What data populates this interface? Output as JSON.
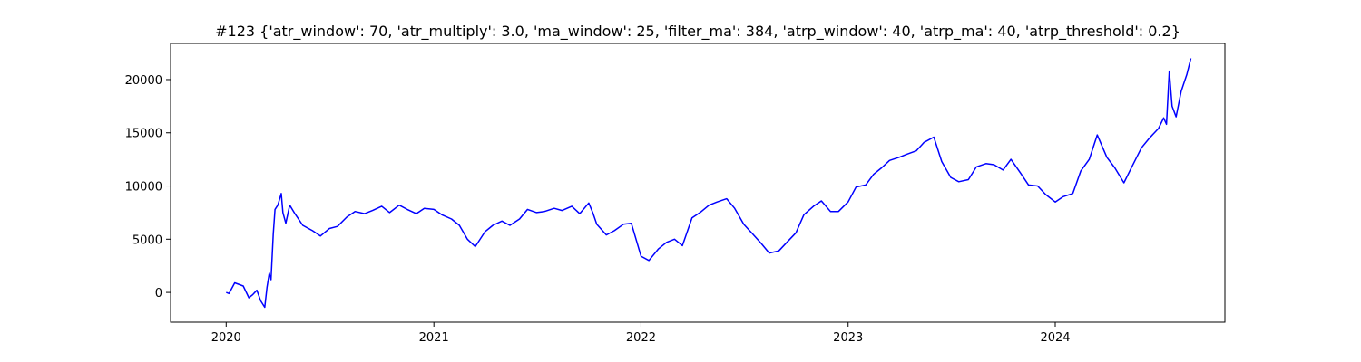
{
  "chart_data": {
    "type": "line",
    "title": "#123 {'atr_window': 70, 'atr_multiply': 3.0, 'ma_window': 25, 'filter_ma': 384, 'atrp_window': 40, 'atrp_ma': 40, 'atrp_threshold': 0.2}",
    "xlabel": "",
    "ylabel": "",
    "grid": false,
    "legend": "none",
    "line_color": "#0000ff",
    "xlim": [
      "2019-09-25",
      "2024-10-26"
    ],
    "ylim": [
      -2800,
      23400
    ],
    "x_ticks": [
      {
        "value": "2020-01-01",
        "label": "2020"
      },
      {
        "value": "2021-01-01",
        "label": "2021"
      },
      {
        "value": "2022-01-01",
        "label": "2022"
      },
      {
        "value": "2023-01-01",
        "label": "2023"
      },
      {
        "value": "2024-01-01",
        "label": "2024"
      }
    ],
    "y_ticks": [
      {
        "value": 0,
        "label": "0"
      },
      {
        "value": 5000,
        "label": "5000"
      },
      {
        "value": 10000,
        "label": "10000"
      },
      {
        "value": 15000,
        "label": "15000"
      },
      {
        "value": 20000,
        "label": "20000"
      }
    ],
    "series": [
      {
        "x": [
          "2020-01-01",
          "2020-01-06",
          "2020-01-16",
          "2020-01-31",
          "2020-02-10",
          "2020-02-17",
          "2020-02-24",
          "2020-03-02",
          "2020-03-09",
          "2020-03-13",
          "2020-03-17",
          "2020-03-20",
          "2020-03-24",
          "2020-03-27",
          "2020-04-01",
          "2020-04-07",
          "2020-04-10",
          "2020-04-15",
          "2020-04-22",
          "2020-05-01",
          "2020-05-15",
          "2020-06-01",
          "2020-06-15",
          "2020-07-01",
          "2020-07-15",
          "2020-08-01",
          "2020-08-15",
          "2020-09-01",
          "2020-09-15",
          "2020-10-01",
          "2020-10-15",
          "2020-11-01",
          "2020-11-15",
          "2020-12-01",
          "2020-12-15",
          "2021-01-01",
          "2021-01-15",
          "2021-02-01",
          "2021-02-15",
          "2021-03-01",
          "2021-03-15",
          "2021-04-01",
          "2021-04-15",
          "2021-05-01",
          "2021-05-15",
          "2021-06-01",
          "2021-06-15",
          "2021-07-01",
          "2021-07-15",
          "2021-08-01",
          "2021-08-15",
          "2021-09-01",
          "2021-09-15",
          "2021-10-01",
          "2021-10-08",
          "2021-10-15",
          "2021-11-01",
          "2021-11-15",
          "2021-12-01",
          "2021-12-15",
          "2022-01-01",
          "2022-01-15",
          "2022-02-01",
          "2022-02-15",
          "2022-03-01",
          "2022-03-15",
          "2022-04-01",
          "2022-04-15",
          "2022-05-01",
          "2022-05-15",
          "2022-06-01",
          "2022-06-15",
          "2022-07-01",
          "2022-07-15",
          "2022-08-01",
          "2022-08-15",
          "2022-09-01",
          "2022-09-15",
          "2022-10-01",
          "2022-10-15",
          "2022-11-01",
          "2022-11-15",
          "2022-12-01",
          "2022-12-15",
          "2023-01-01",
          "2023-01-15",
          "2023-02-01",
          "2023-02-15",
          "2023-03-01",
          "2023-03-15",
          "2023-04-01",
          "2023-04-15",
          "2023-05-01",
          "2023-05-15",
          "2023-06-01",
          "2023-06-15",
          "2023-07-01",
          "2023-07-15",
          "2023-08-01",
          "2023-08-15",
          "2023-09-01",
          "2023-09-15",
          "2023-10-01",
          "2023-10-15",
          "2023-11-01",
          "2023-11-15",
          "2023-12-01",
          "2023-12-15",
          "2024-01-01",
          "2024-01-15",
          "2024-02-01",
          "2024-02-15",
          "2024-03-01",
          "2024-03-15",
          "2024-04-01",
          "2024-04-15",
          "2024-05-01",
          "2024-05-15",
          "2024-06-01",
          "2024-06-15",
          "2024-07-01",
          "2024-07-10",
          "2024-07-15",
          "2024-07-20",
          "2024-07-25",
          "2024-08-01",
          "2024-08-10",
          "2024-08-20",
          "2024-08-27"
        ],
        "values": [
          0,
          -100,
          900,
          600,
          -500,
          -200,
          200,
          -800,
          -1400,
          500,
          1800,
          1200,
          5500,
          7800,
          8200,
          9300,
          7500,
          6500,
          8200,
          7400,
          6300,
          5800,
          5300,
          6000,
          6200,
          7100,
          7600,
          7400,
          7700,
          8100,
          7500,
          8200,
          7800,
          7400,
          7900,
          7800,
          7300,
          6900,
          6300,
          5000,
          4300,
          5700,
          6300,
          6700,
          6300,
          6900,
          7800,
          7500,
          7600,
          7900,
          7700,
          8100,
          7400,
          8400,
          7500,
          6400,
          5400,
          5800,
          6400,
          6500,
          3400,
          3000,
          4100,
          4700,
          5000,
          4400,
          7000,
          7500,
          8200,
          8500,
          8800,
          7900,
          6400,
          5600,
          4600,
          3700,
          3900,
          4700,
          5600,
          7300,
          8100,
          8600,
          7600,
          7600,
          8500,
          9900,
          10100,
          11100,
          11700,
          12400,
          12700,
          13000,
          13300,
          14100,
          14600,
          12300,
          10800,
          10400,
          10600,
          11800,
          12100,
          12000,
          11500,
          12500,
          11200,
          10100,
          10000,
          9200,
          8500,
          9000,
          9300,
          11400,
          12500,
          14800,
          12700,
          11700,
          10300,
          11800,
          13600,
          14500,
          15400,
          16400,
          15800,
          20800,
          17500,
          16500,
          18900,
          20500,
          22000
        ]
      }
    ]
  }
}
